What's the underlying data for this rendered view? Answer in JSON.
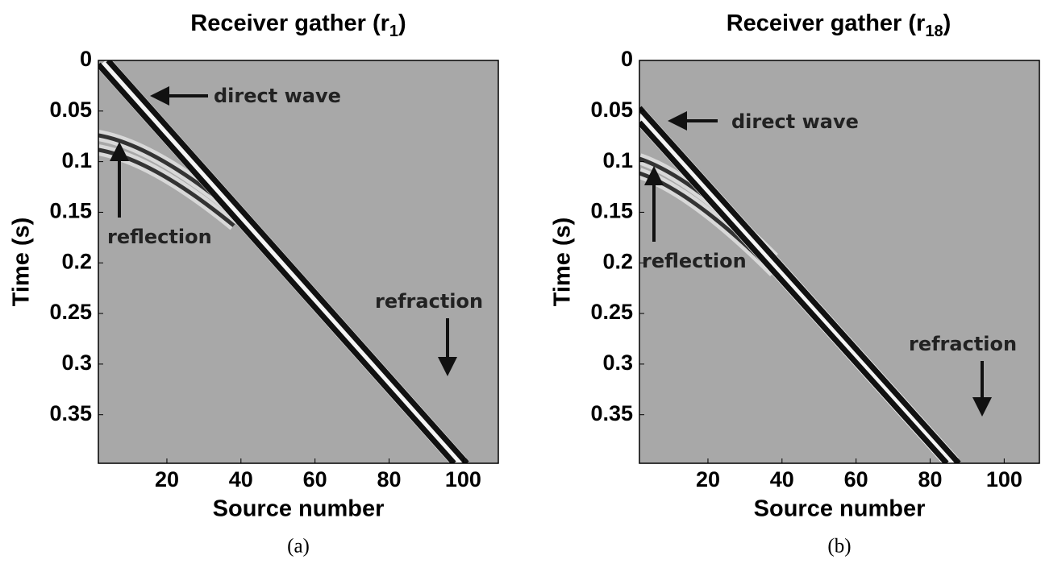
{
  "chart_data": [
    {
      "type": "image",
      "title": "Receiver gather (r",
      "title_subscript": "1",
      "title_suffix": ")",
      "xlabel": "Source number",
      "ylabel": "Time (s)",
      "xlim": [
        1.5,
        109.5
      ],
      "ylim": [
        0,
        0.398
      ],
      "xticks": [
        20,
        40,
        60,
        80,
        100
      ],
      "yticks": [
        0,
        0.05,
        0.1,
        0.15,
        0.2,
        0.25,
        0.3,
        0.35
      ],
      "annotations": [
        "direct wave",
        "reflection",
        "refraction"
      ],
      "caption": "(a)"
    },
    {
      "type": "image",
      "title": "Receiver gather (r",
      "title_subscript": "18",
      "title_suffix": ")",
      "xlabel": "Source number",
      "ylabel": "Time (s)",
      "xlim": [
        1.5,
        109.5
      ],
      "ylim": [
        0,
        0.398
      ],
      "xticks": [
        20,
        40,
        60,
        80,
        100
      ],
      "yticks": [
        0,
        0.05,
        0.1,
        0.15,
        0.2,
        0.25,
        0.3,
        0.35
      ],
      "annotations": [
        "direct wave",
        "reflection",
        "refraction"
      ],
      "caption": "(b)"
    }
  ]
}
